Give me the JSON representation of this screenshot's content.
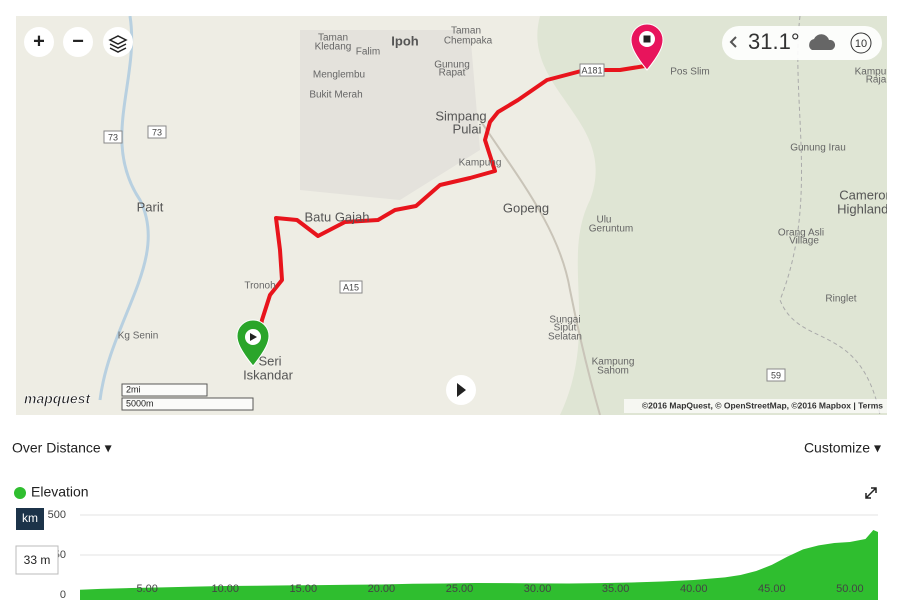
{
  "map": {
    "labels": [
      "Taman",
      "Kledang",
      "Falim",
      "Ipoh",
      "Taman",
      "Chempaka",
      "Gunung",
      "Rapat",
      "Menglembu",
      "Bukit Merah",
      "Simpang",
      "Pulai",
      "Kampung",
      "Gopeng",
      "Ulu",
      "Geruntum",
      "Batu Gajah",
      "Parit",
      "Tronoh",
      "Kg Senin",
      "Sungai",
      "Siput",
      "Selatan",
      "Kampung",
      "Sahom",
      "Seri",
      "Iskandar",
      "Pos Slim",
      "Gunung Irau",
      "Orang Asli",
      "Village",
      "Ringlet",
      "Kampung",
      "Raja",
      "Cameron",
      "Highlands"
    ],
    "roads": [
      "73",
      "73",
      "A15",
      "59",
      "A181"
    ],
    "zoom_in": "+",
    "zoom_out": "−",
    "weather": {
      "temperature": "31.1°",
      "wind": "10"
    },
    "scale": [
      "2mi",
      "5000m"
    ],
    "logo": "mapquest",
    "attribution": "©2016 MapQuest, © OpenStreetMap, ©2016 Mapbox | Terms"
  },
  "toolbar": {
    "view": "Over Distance ▾",
    "customize": "Customize ▾"
  },
  "chart_data": {
    "type": "area",
    "unit_badge": "km",
    "tooltip": "33 m",
    "x": [
      0.7,
      2,
      4,
      6,
      8,
      10,
      12,
      14,
      16,
      18,
      20,
      22,
      24,
      26,
      28,
      30,
      32,
      34,
      36,
      38,
      40,
      42,
      43,
      44,
      45,
      46,
      47,
      48,
      49,
      50,
      51,
      51.5,
      51.8
    ],
    "series": [
      {
        "name": "Elevation",
        "color": "#2fbe2f",
        "values": [
          33,
          38,
          44,
          48,
          52,
          56,
          58,
          60,
          62,
          64,
          66,
          70,
          72,
          75,
          74,
          73,
          72,
          74,
          78,
          84,
          94,
          110,
          125,
          150,
          188,
          240,
          285,
          310,
          325,
          331,
          350,
          406,
          394
        ]
      }
    ],
    "xlim": [
      0.7,
      51.8
    ],
    "ylim": [
      0,
      500
    ],
    "yticks": [
      0,
      250,
      500
    ],
    "xticks": [
      {
        "value": 5,
        "label": "5.00"
      },
      {
        "value": 10,
        "label": "10.00"
      },
      {
        "value": 15,
        "label": "15.00"
      },
      {
        "value": 20,
        "label": "20.00"
      },
      {
        "value": 25,
        "label": "25.00"
      },
      {
        "value": 30,
        "label": "30.00"
      },
      {
        "value": 35,
        "label": "35.00"
      },
      {
        "value": 40,
        "label": "40.00"
      },
      {
        "value": 45,
        "label": "45.00"
      },
      {
        "value": 50,
        "label": "50.00"
      }
    ],
    "grid": true
  }
}
